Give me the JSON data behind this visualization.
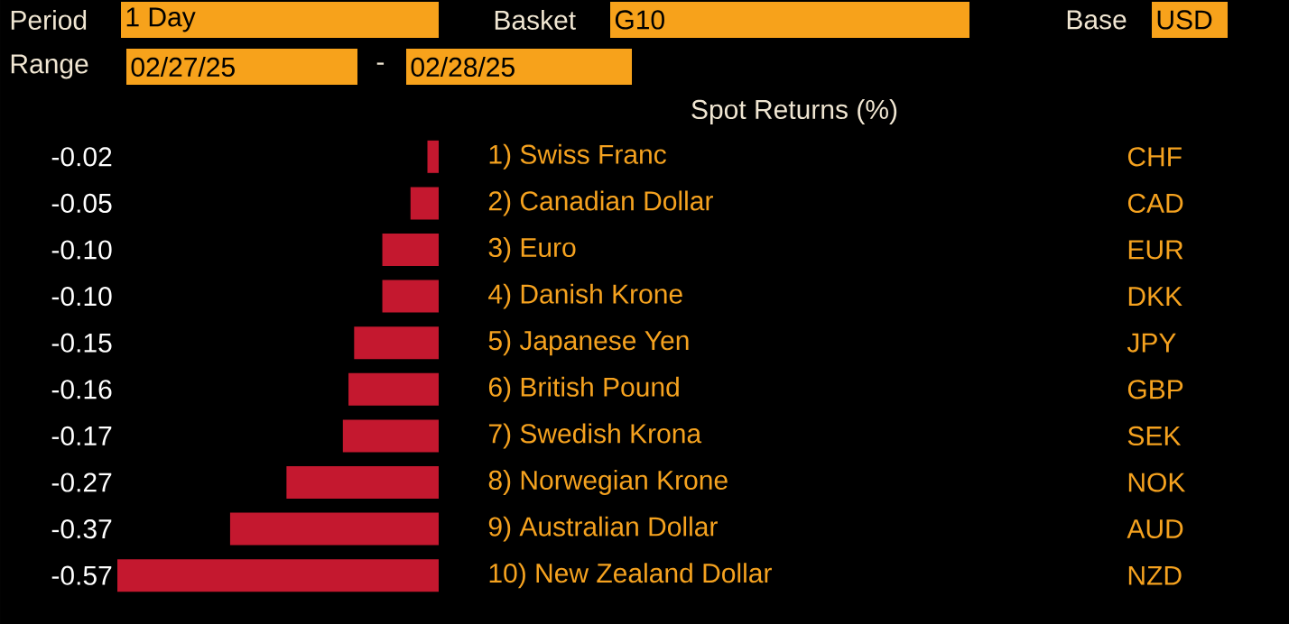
{
  "chart_data": {
    "type": "bar",
    "orientation": "horizontal",
    "title": "Spot Returns (%)",
    "color": "#c4182f",
    "categories": [
      "1) Swiss Franc",
      "2) Canadian Dollar",
      "3) Euro",
      "4) Danish Krone",
      "5) Japanese Yen",
      "6) British Pound",
      "7) Swedish Krona",
      "8) Norwegian Krone",
      "9) Australian Dollar",
      "10) New Zealand Dollar"
    ],
    "values": [
      -0.02,
      -0.05,
      -0.1,
      -0.1,
      -0.15,
      -0.16,
      -0.17,
      -0.27,
      -0.37,
      -0.57
    ],
    "value_labels": [
      "-0.02",
      "-0.05",
      "-0.10",
      "-0.10",
      "-0.15",
      "-0.16",
      "-0.17",
      "-0.27",
      "-0.37",
      "-0.57"
    ],
    "annotations": [
      "Period",
      "1 Day",
      "Basket",
      "G10",
      "Base",
      "USD",
      "Range",
      "02/27/25",
      "-",
      "02/28/25",
      "CHF",
      "CAD",
      "EUR",
      "DKK",
      "JPY",
      "GBP",
      "SEK",
      "NOK",
      "AUD",
      "NZD"
    ]
  }
}
